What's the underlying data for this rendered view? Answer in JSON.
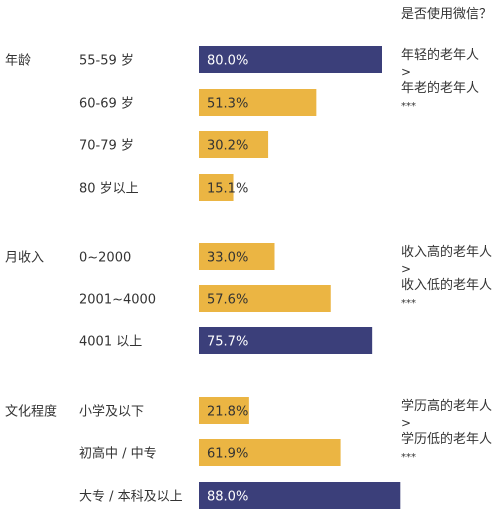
{
  "chart_data": {
    "type": "bar",
    "orientation": "horizontal",
    "title": "是否使用微信？",
    "xlim": [
      0,
      100
    ],
    "colors": {
      "highlight": "#3b3f7a",
      "normal": "#ebb543",
      "text": "#333333"
    },
    "groups": [
      {
        "name": "年龄",
        "categories": [
          "55-59 岁",
          "60-69 岁",
          "70-79 岁",
          "80 岁以上"
        ],
        "values": [
          80.0,
          51.3,
          30.2,
          15.1
        ],
        "labels": [
          "80.0%",
          "51.3%",
          "30.2%",
          "15.1%"
        ],
        "highlight": [
          true,
          false,
          false,
          false
        ],
        "note": [
          "年轻的老年人",
          ">",
          "年老的老年人",
          "***"
        ]
      },
      {
        "name": "月收入",
        "categories": [
          "0~2000",
          "2001~4000",
          "4001 以上"
        ],
        "values": [
          33.0,
          57.6,
          75.7
        ],
        "labels": [
          "33.0%",
          "57.6%",
          "75.7%"
        ],
        "highlight": [
          false,
          false,
          true
        ],
        "note": [
          "收入高的老年人",
          ">",
          "收入低的老年人",
          "***"
        ]
      },
      {
        "name": "文化程度",
        "categories": [
          "小学及以下",
          "初高中 / 中专",
          "大专 / 本科及以上"
        ],
        "values": [
          21.8,
          61.9,
          88.0
        ],
        "labels": [
          "21.8%",
          "61.9%",
          "88.0%"
        ],
        "highlight": [
          false,
          false,
          true
        ],
        "note": [
          "学历高的老年人",
          ">",
          "学历低的老年人",
          "***"
        ]
      }
    ]
  }
}
